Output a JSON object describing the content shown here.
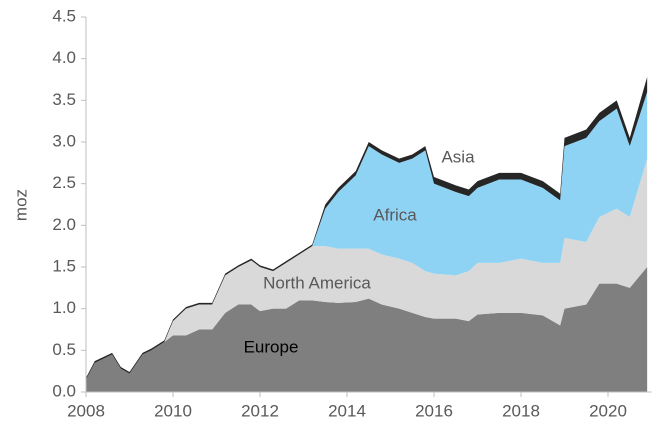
{
  "chart_data": {
    "type": "stacked_area",
    "y_label": "moz",
    "x": [
      2008.0,
      2008.2,
      2008.6,
      2008.8,
      2009.0,
      2009.3,
      2009.5,
      2009.8,
      2010.0,
      2010.3,
      2010.6,
      2010.9,
      2011.2,
      2011.5,
      2011.8,
      2012.0,
      2012.3,
      2012.6,
      2012.9,
      2013.2,
      2013.5,
      2013.8,
      2014.2,
      2014.5,
      2014.8,
      2015.2,
      2015.5,
      2015.8,
      2016.0,
      2016.5,
      2016.8,
      2017.0,
      2017.5,
      2018.0,
      2018.5,
      2018.9,
      2019.0,
      2019.5,
      2019.8,
      2020.2,
      2020.5,
      2020.9
    ],
    "series": [
      {
        "name": "Europe",
        "color": "#7f7f7f",
        "values": [
          0.15,
          0.35,
          0.45,
          0.28,
          0.22,
          0.45,
          0.5,
          0.6,
          0.68,
          0.68,
          0.75,
          0.75,
          0.95,
          1.05,
          1.05,
          0.97,
          1.0,
          1.0,
          1.1,
          1.1,
          1.08,
          1.07,
          1.08,
          1.12,
          1.05,
          1.0,
          0.95,
          0.9,
          0.88,
          0.88,
          0.85,
          0.93,
          0.95,
          0.95,
          0.92,
          0.8,
          1.0,
          1.05,
          1.3,
          1.3,
          1.25,
          1.5
        ]
      },
      {
        "name": "North America",
        "color": "#d9d9d9",
        "values": [
          0,
          0,
          0,
          0,
          0,
          0,
          0,
          0,
          0.17,
          0.32,
          0.3,
          0.3,
          0.45,
          0.45,
          0.53,
          0.53,
          0.45,
          0.55,
          0.55,
          0.65,
          0.67,
          0.65,
          0.64,
          0.6,
          0.6,
          0.6,
          0.6,
          0.55,
          0.54,
          0.52,
          0.6,
          0.62,
          0.6,
          0.65,
          0.63,
          0.75,
          0.85,
          0.75,
          0.8,
          0.9,
          0.85,
          1.3
        ]
      },
      {
        "name": "Africa",
        "color": "#8fd3f4",
        "values": [
          0,
          0,
          0,
          0,
          0,
          0,
          0,
          0,
          0,
          0,
          0,
          0,
          0,
          0,
          0,
          0,
          0,
          0,
          0,
          0,
          0.45,
          0.68,
          0.88,
          1.23,
          1.2,
          1.15,
          1.25,
          1.45,
          1.08,
          1.0,
          0.9,
          0.9,
          1.0,
          0.95,
          0.9,
          0.75,
          1.1,
          1.25,
          1.15,
          1.2,
          0.85,
          0.8
        ]
      },
      {
        "name": "Asia",
        "color": "#262626",
        "values": [
          0.02,
          0.02,
          0.02,
          0.02,
          0.02,
          0.02,
          0.02,
          0.02,
          0.02,
          0.02,
          0.02,
          0.02,
          0.02,
          0.02,
          0.02,
          0.02,
          0.02,
          0.02,
          0.02,
          0.02,
          0.05,
          0.05,
          0.05,
          0.05,
          0.05,
          0.05,
          0.05,
          0.05,
          0.08,
          0.08,
          0.08,
          0.08,
          0.08,
          0.08,
          0.08,
          0.08,
          0.1,
          0.1,
          0.1,
          0.1,
          0.1,
          0.18
        ]
      }
    ],
    "xlim": [
      2008,
      2021
    ],
    "xticks": [
      2008,
      2010,
      2012,
      2014,
      2016,
      2018,
      2020
    ],
    "ylim": [
      0,
      4.5
    ],
    "yticks": [
      {
        "value": 0,
        "label": "0.0"
      },
      0.5,
      {
        "value": 1,
        "label": "1.0"
      },
      1.5,
      {
        "value": 2,
        "label": "2.0"
      },
      2.5,
      {
        "value": 3,
        "label": "3.0"
      },
      3.5,
      {
        "value": 4,
        "label": "4.0"
      },
      4.5
    ]
  }
}
